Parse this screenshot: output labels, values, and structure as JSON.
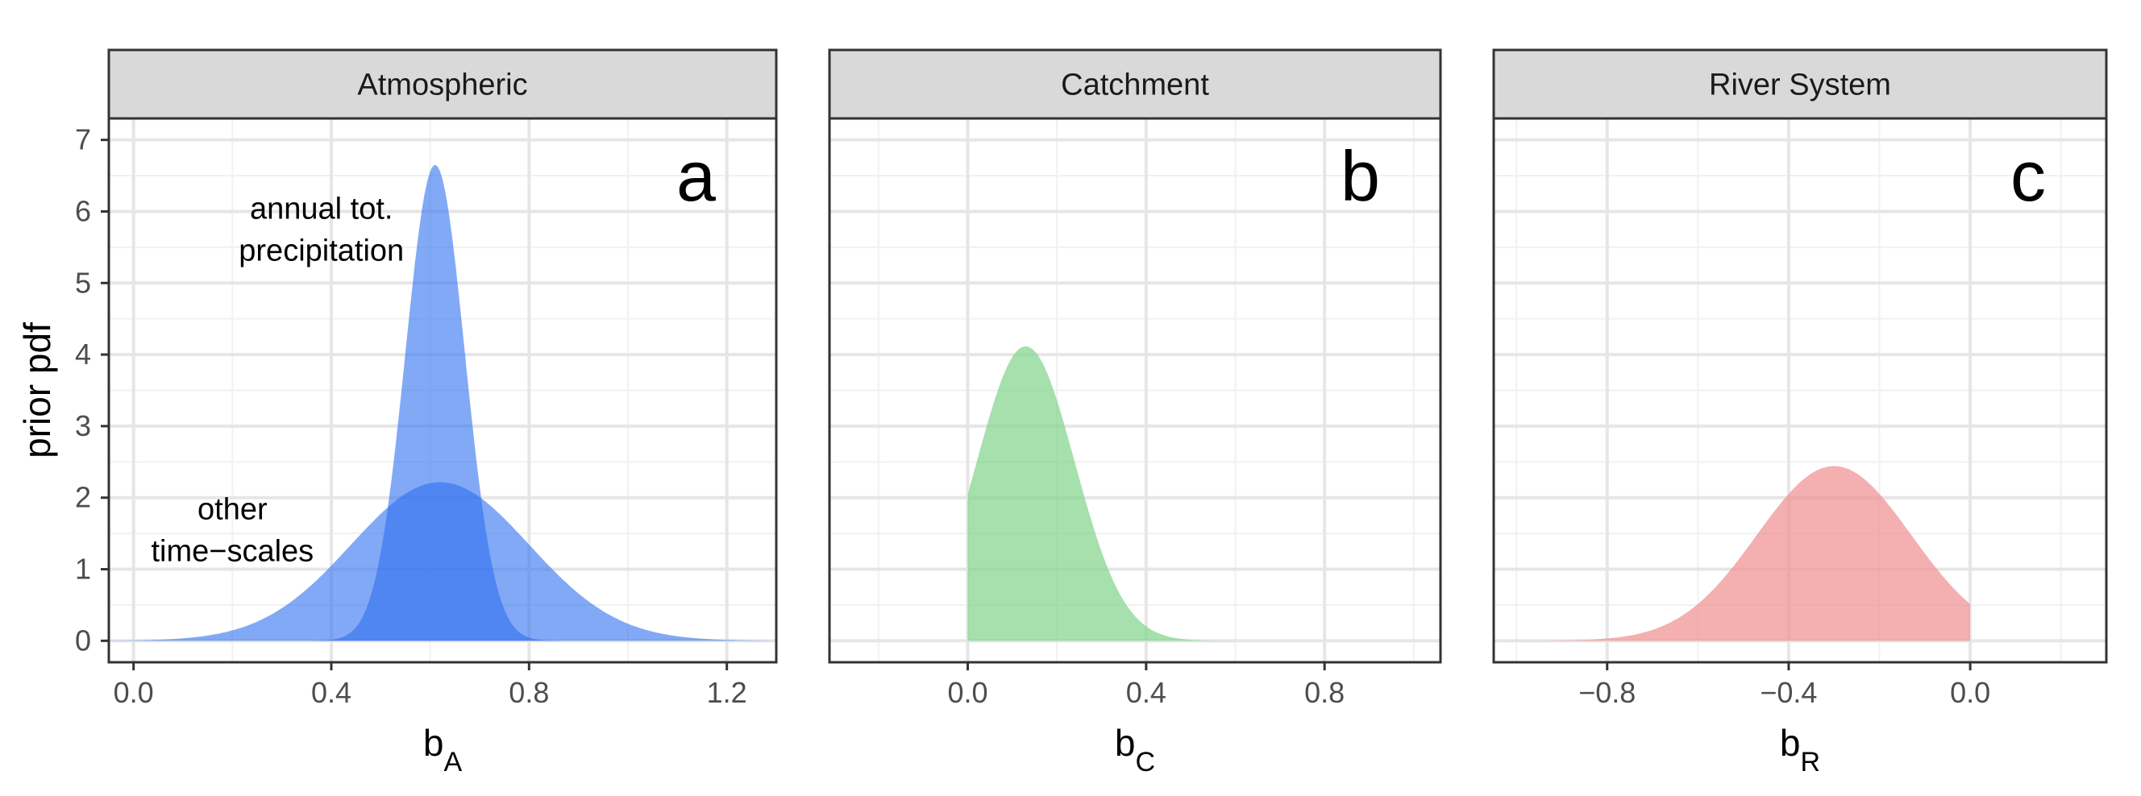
{
  "chart_data": [
    {
      "type": "area",
      "panel": "a",
      "strip_title": "Atmospheric",
      "panel_letter": "a",
      "xlabel_main": "b",
      "xlabel_sub": "A",
      "ylabel": "prior pdf",
      "xlim": [
        -0.05,
        1.3
      ],
      "ylim": [
        -0.3,
        7.3
      ],
      "x_ticks": [
        0.0,
        0.4,
        0.8,
        1.2
      ],
      "x_tick_labels": [
        "0.0",
        "0.4",
        "0.8",
        "1.2"
      ],
      "y_ticks": [
        0,
        1,
        2,
        3,
        4,
        5,
        6,
        7
      ],
      "y_tick_labels": [
        "0",
        "1",
        "2",
        "3",
        "4",
        "5",
        "6",
        "7"
      ],
      "grid": true,
      "color": "#5b95f0",
      "series": [
        {
          "distribution": "normal",
          "mean": 0.62,
          "sd": 0.18,
          "color": "#2f6ff0",
          "opacity": 0.6,
          "x": [
            0.0,
            0.2,
            0.4,
            0.5,
            0.62,
            0.75,
            0.8,
            1.0,
            1.25
          ],
          "values": [
            0.06,
            0.49,
            1.04,
            1.73,
            2.22,
            1.75,
            1.35,
            0.24,
            0.01
          ]
        },
        {
          "distribution": "normal",
          "mean": 0.61,
          "sd": 0.06,
          "color": "#2f6ff0",
          "opacity": 0.6,
          "x": [
            0.43,
            0.5,
            0.55,
            0.61,
            0.67,
            0.72,
            0.79
          ],
          "values": [
            0.07,
            1.24,
            3.96,
            6.65,
            3.96,
            1.24,
            0.07
          ]
        }
      ],
      "annotations": [
        {
          "lines": [
            "annual tot.",
            "precipitation"
          ],
          "x": 0.38,
          "y": 5.9
        },
        {
          "lines": [
            "other",
            "time−scales"
          ],
          "x": 0.2,
          "y": 1.7
        }
      ]
    },
    {
      "type": "area",
      "panel": "b",
      "strip_title": "Catchment",
      "panel_letter": "b",
      "xlabel_main": "b",
      "xlabel_sub": "C",
      "xlim": [
        -0.31,
        1.06
      ],
      "ylim": [
        -0.3,
        7.3
      ],
      "x_ticks": [
        0.0,
        0.4,
        0.8
      ],
      "x_tick_labels": [
        "0.0",
        "0.4",
        "0.8"
      ],
      "grid": true,
      "color": "#7fd38a",
      "series": [
        {
          "distribution": "truncated-normal",
          "mean": 0.13,
          "sd": 0.11,
          "lower": 0.0,
          "color": "#7fd38a",
          "opacity": 0.7,
          "x": [
            0.0,
            0.05,
            0.13,
            0.2,
            0.3,
            0.4,
            0.5,
            0.6
          ],
          "values": [
            2.2,
            2.8,
            3.63,
            3.1,
            1.6,
            0.48,
            0.1,
            0.01
          ]
        }
      ]
    },
    {
      "type": "area",
      "panel": "c",
      "strip_title": "River System",
      "panel_letter": "c",
      "xlabel_main": "b",
      "xlabel_sub": "R",
      "xlim": [
        -1.05,
        0.3
      ],
      "ylim": [
        -0.3,
        7.3
      ],
      "x_ticks": [
        -0.8,
        -0.4,
        0.0
      ],
      "x_tick_labels": [
        "−0.8",
        "−0.4",
        "0.0"
      ],
      "grid": true,
      "color": "#f08e90",
      "series": [
        {
          "distribution": "truncated-normal",
          "mean": -0.3,
          "sd": 0.17,
          "upper": 0.0,
          "color": "#f08e90",
          "opacity": 0.7,
          "x": [
            -1.0,
            -0.8,
            -0.6,
            -0.4,
            -0.3,
            -0.2,
            -0.1,
            0.0
          ],
          "values": [
            0.01,
            0.1,
            0.64,
            1.96,
            2.35,
            1.96,
            1.2,
            0.6
          ]
        }
      ]
    }
  ]
}
